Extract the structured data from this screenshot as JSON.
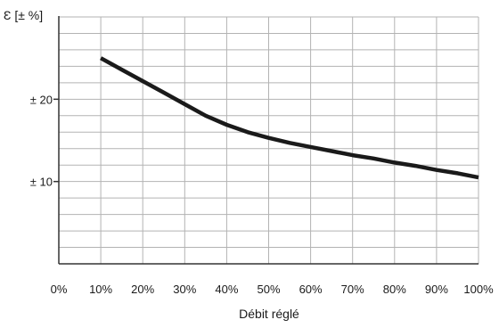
{
  "chart_data": {
    "type": "line",
    "title": "",
    "xlabel": "Débit réglé",
    "ylabel": "Ɛ [± %]",
    "xlim": [
      0,
      100
    ],
    "ylim": [
      0,
      30
    ],
    "x_ticks": [
      {
        "value": 0,
        "label": "0%"
      },
      {
        "value": 10,
        "label": "10%"
      },
      {
        "value": 20,
        "label": "20%"
      },
      {
        "value": 30,
        "label": "30%"
      },
      {
        "value": 40,
        "label": "40%"
      },
      {
        "value": 50,
        "label": "50%"
      },
      {
        "value": 60,
        "label": "60%"
      },
      {
        "value": 70,
        "label": "70%"
      },
      {
        "value": 80,
        "label": "80%"
      },
      {
        "value": 90,
        "label": "90%"
      },
      {
        "value": 100,
        "label": "100%"
      }
    ],
    "y_ticks": [
      {
        "value": 10,
        "label": "± 10"
      },
      {
        "value": 20,
        "label": "± 20"
      }
    ],
    "grid": true,
    "grid_y_step": 2,
    "series": [
      {
        "x": [
          10,
          15,
          20,
          25,
          30,
          35,
          40,
          45,
          50,
          55,
          60,
          65,
          70,
          75,
          80,
          85,
          90,
          95,
          100
        ],
        "values": [
          25.0,
          23.6,
          22.2,
          20.8,
          19.4,
          18.0,
          16.9,
          16.0,
          15.3,
          14.7,
          14.2,
          13.7,
          13.2,
          12.8,
          12.3,
          11.9,
          11.4,
          11.0,
          10.5
        ]
      }
    ],
    "line_color": "#1a1a1a",
    "grid_color": "#b3b3b3"
  }
}
